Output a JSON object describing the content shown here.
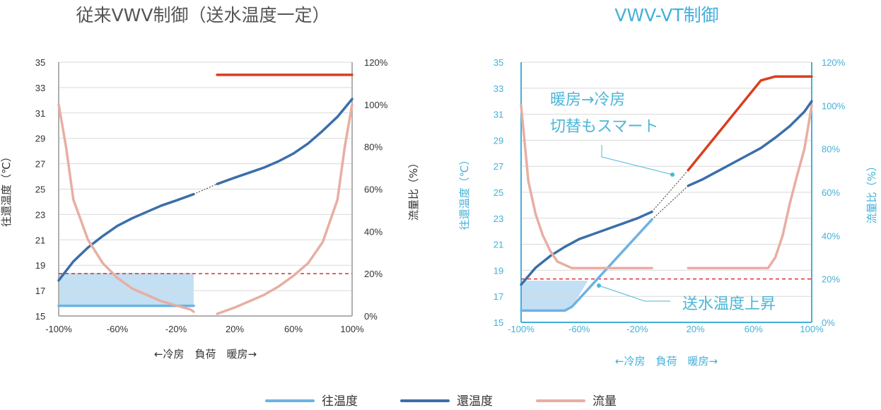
{
  "colors": {
    "supply": "#6cb3e3",
    "return": "#3a6fa9",
    "return_high": "#d93e1f",
    "flow": "#e8aea3",
    "threshold": "#e03030",
    "fill": "#bcdcf2",
    "grid": "#d9d9d9",
    "left_axis": "#b0b0b0",
    "left_text": "#333333",
    "right_text": "#44b0d8",
    "right_axis": "#44b0d8",
    "callout": "#4ab6d8"
  },
  "legend": [
    {
      "label": "往温度",
      "color_key": "supply"
    },
    {
      "label": "還温度",
      "color_key": "return"
    },
    {
      "label": "流量",
      "color_key": "flow"
    }
  ],
  "chart_data": [
    {
      "type": "line",
      "title": "従来VWV制御（送水温度一定）",
      "xlabel": "←冷房　負荷　暖房→",
      "ylabel": "往還温度（℃）",
      "ylabel_right": "流量比（%）",
      "xlim": [
        -100,
        100
      ],
      "ylim": [
        15,
        35
      ],
      "ylim_right": [
        0,
        120
      ],
      "x_ticks": [
        "-100%",
        "-60%",
        "-20%",
        "20%",
        "60%",
        "100%"
      ],
      "y_ticks": [
        "15",
        "17",
        "19",
        "21",
        "23",
        "25",
        "27",
        "29",
        "31",
        "33",
        "35"
      ],
      "y_right_ticks": [
        "0%",
        "20%",
        "40%",
        "60%",
        "80%",
        "100%",
        "120%"
      ],
      "threshold_right": 20,
      "series": [
        {
          "name": "往温度",
          "axis": "left",
          "color_key": "supply",
          "x": [
            -100,
            -8
          ],
          "y": [
            15.8,
            15.8
          ]
        },
        {
          "name": "還温度",
          "axis": "left",
          "color_key": "return",
          "x": [
            -100,
            -90,
            -80,
            -70,
            -60,
            -50,
            -40,
            -30,
            -20,
            -8
          ],
          "y": [
            17.8,
            19.3,
            20.4,
            21.3,
            22.1,
            22.7,
            23.2,
            23.7,
            24.1,
            24.6
          ]
        },
        {
          "name": "還温度",
          "axis": "left",
          "color_key": "return",
          "x": [
            8,
            20,
            30,
            40,
            50,
            60,
            70,
            80,
            90,
            100
          ],
          "y": [
            25.4,
            25.9,
            26.3,
            26.7,
            27.2,
            27.8,
            28.6,
            29.6,
            30.7,
            32.1
          ]
        },
        {
          "name": "還温度",
          "axis": "left",
          "color_key": "return_high",
          "x": [
            8,
            100
          ],
          "y": [
            34.0,
            34.0
          ]
        },
        {
          "name": "流量",
          "axis": "right",
          "color_key": "flow",
          "x": [
            -100,
            -95,
            -90,
            -80,
            -70,
            -60,
            -50,
            -40,
            -30,
            -20,
            -10,
            -8
          ],
          "y": [
            100,
            80,
            55,
            36,
            25,
            18,
            13,
            10,
            7,
            5,
            3,
            2
          ]
        },
        {
          "name": "流量",
          "axis": "right",
          "color_key": "flow",
          "x": [
            8,
            20,
            30,
            40,
            50,
            60,
            70,
            80,
            90,
            95,
            100
          ],
          "y": [
            1,
            4,
            7,
            10,
            14,
            19,
            25,
            35,
            55,
            80,
            100
          ]
        }
      ],
      "shaded": {
        "x": [
          -100,
          -8
        ],
        "y": [
          15.8,
          18.4
        ]
      },
      "connectors": [
        {
          "from": [
            -8,
            24.6
          ],
          "to": [
            8,
            25.4
          ]
        }
      ]
    },
    {
      "type": "line",
      "title": "VWV-VT制御",
      "xlabel": "←冷房　負荷　暖房→",
      "ylabel": "往還温度（℃）",
      "ylabel_right": "流量比（%）",
      "xlim": [
        -100,
        100
      ],
      "ylim": [
        15,
        35
      ],
      "ylim_right": [
        0,
        120
      ],
      "x_ticks": [
        "-100%",
        "-60%",
        "-20%",
        "20%",
        "60%",
        "100%"
      ],
      "y_ticks": [
        "15",
        "17",
        "19",
        "21",
        "23",
        "25",
        "27",
        "29",
        "31",
        "33",
        "35"
      ],
      "y_right_ticks": [
        "0%",
        "20%",
        "40%",
        "60%",
        "80%",
        "100%",
        "120%"
      ],
      "threshold_right": 20,
      "annotations": [
        "暖房→冷房",
        "切替もスマート",
        "送水温度上昇"
      ],
      "series": [
        {
          "name": "往温度",
          "axis": "left",
          "color_key": "supply",
          "x": [
            -100,
            -70,
            -65,
            -10
          ],
          "y": [
            15.9,
            15.9,
            16.2,
            22.9
          ]
        },
        {
          "name": "還温度",
          "axis": "left",
          "color_key": "return",
          "x": [
            -100,
            -90,
            -80,
            -70,
            -60,
            -50,
            -40,
            -30,
            -20,
            -10
          ],
          "y": [
            17.9,
            19.2,
            20.1,
            20.8,
            21.4,
            21.8,
            22.2,
            22.6,
            23.0,
            23.5
          ]
        },
        {
          "name": "還温度",
          "axis": "left",
          "color_key": "return",
          "x": [
            15,
            25,
            35,
            45,
            55,
            65,
            75,
            85,
            95,
            100
          ],
          "y": [
            25.5,
            26.0,
            26.6,
            27.2,
            27.8,
            28.4,
            29.2,
            30.1,
            31.2,
            32.0
          ]
        },
        {
          "name": "還温度",
          "axis": "left",
          "color_key": "return_high",
          "x": [
            15,
            65,
            75,
            100
          ],
          "y": [
            26.7,
            33.6,
            33.9,
            33.9
          ]
        },
        {
          "name": "流量",
          "axis": "right",
          "color_key": "flow",
          "x": [
            -100,
            -95,
            -90,
            -85,
            -80,
            -75,
            -65,
            -50,
            -35,
            -20,
            -10
          ],
          "y": [
            100,
            65,
            50,
            40,
            33,
            28,
            25,
            25,
            25,
            25,
            25
          ]
        },
        {
          "name": "流量",
          "axis": "right",
          "color_key": "flow",
          "x": [
            15,
            30,
            45,
            60,
            70,
            75,
            80,
            85,
            90,
            95,
            100
          ],
          "y": [
            25,
            25,
            25,
            25,
            25,
            30,
            40,
            55,
            68,
            80,
            100
          ]
        }
      ],
      "shaded": {
        "x": [
          -100,
          -70,
          -65,
          -54,
          -54,
          -100
        ],
        "y": [
          15.9,
          15.9,
          16.2,
          18.2,
          18.2,
          18.2
        ]
      },
      "connectors": [
        {
          "from": [
            -10,
            23.5
          ],
          "to": [
            15,
            26.7
          ]
        },
        {
          "from": [
            -10,
            22.9
          ],
          "to": [
            15,
            25.5
          ]
        }
      ]
    }
  ]
}
